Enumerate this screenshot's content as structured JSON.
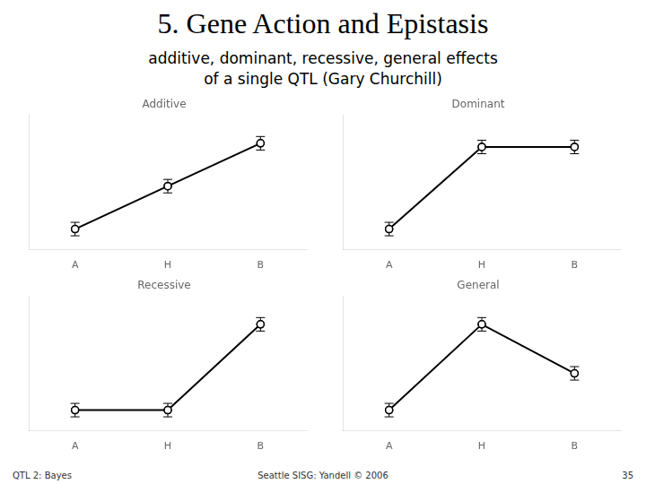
{
  "title": "5. Gene Action and Epistasis",
  "subtitle": "additive, dominant, recessive, general effects\nof a single QTL (Gary Churchill)",
  "annotations": [
    "QTL 2: Bayes",
    "Seattle SISG: Yandell © 2006",
    "35"
  ],
  "chart_data": [
    {
      "type": "line",
      "title": "Additive",
      "categories": [
        "A",
        "H",
        "B"
      ],
      "values": [
        0.15,
        0.5,
        0.85
      ],
      "errors": [
        0.055,
        0.055,
        0.055
      ],
      "color": "#000000",
      "marker": "circle",
      "ylim": [
        -0.02,
        1.08
      ],
      "tick_labels": "x",
      "grid": false
    },
    {
      "type": "line",
      "title": "Dominant",
      "categories": [
        "A",
        "H",
        "B"
      ],
      "values": [
        0.15,
        0.82,
        0.82
      ],
      "errors": [
        0.055,
        0.055,
        0.055
      ],
      "color": "#000000",
      "marker": "circle",
      "ylim": [
        -0.02,
        1.08
      ],
      "tick_labels": "x",
      "grid": false
    },
    {
      "type": "line",
      "title": "Recessive",
      "categories": [
        "A",
        "H",
        "B"
      ],
      "values": [
        0.15,
        0.15,
        0.85
      ],
      "errors": [
        0.055,
        0.055,
        0.055
      ],
      "color": "#000000",
      "marker": "circle",
      "ylim": [
        -0.02,
        1.08
      ],
      "tick_labels": "x",
      "grid": false
    },
    {
      "type": "line",
      "title": "General",
      "categories": [
        "A",
        "H",
        "B"
      ],
      "values": [
        0.15,
        0.85,
        0.45
      ],
      "errors": [
        0.055,
        0.055,
        0.055
      ],
      "color": "#000000",
      "marker": "circle",
      "ylim": [
        -0.02,
        1.08
      ],
      "tick_labels": "x",
      "grid": false
    }
  ]
}
